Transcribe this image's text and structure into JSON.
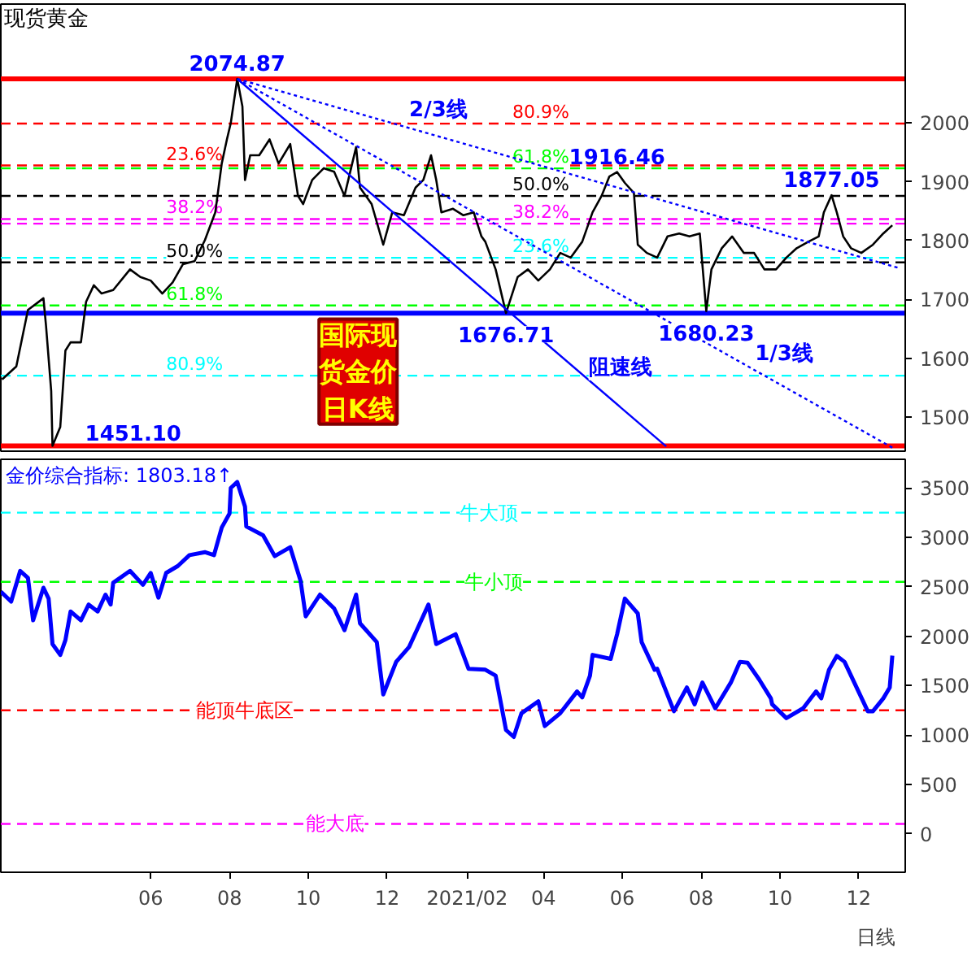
{
  "chart_data": [
    {
      "type": "line",
      "title": "现货黄金",
      "xlim": [
        "2020-02-06",
        "2022-01-06"
      ],
      "ylim": [
        1442,
        2202
      ],
      "yticks": [
        1500,
        1600,
        1700,
        1800,
        1900,
        2000
      ],
      "tick_labels": "y",
      "series": [
        {
          "color": "#000000",
          "x": [
            "2020-02-07",
            "2020-02-18",
            "2020-02-27",
            "2020-03-10",
            "2020-03-12",
            "2020-03-16",
            "2020-03-17",
            "2020-03-23",
            "2020-03-27",
            "2020-03-31",
            "2020-04-08",
            "2020-04-12",
            "2020-04-18",
            "2020-04-24",
            "2020-05-03",
            "2020-05-16",
            "2020-05-24",
            "2020-06-01",
            "2020-06-10",
            "2020-06-18",
            "2020-06-26",
            "2020-07-05",
            "2020-07-13",
            "2020-07-21",
            "2020-07-26",
            "2020-07-30",
            "2020-08-02",
            "2020-08-07",
            "2020-08-11",
            "2020-08-13",
            "2020-08-17",
            "2020-08-24",
            "2020-09-01",
            "2020-09-08",
            "2020-09-17",
            "2020-09-23",
            "2020-09-27",
            "2020-10-04",
            "2020-10-13",
            "2020-10-21",
            "2020-10-29",
            "2020-11-07",
            "2020-11-10",
            "2020-11-19",
            "2020-11-28",
            "2020-12-05",
            "2020-12-14",
            "2020-12-23",
            "2020-12-29",
            "2021-01-04",
            "2021-01-08",
            "2021-01-12",
            "2021-01-21",
            "2021-01-29",
            "2021-02-06",
            "2021-02-12",
            "2021-02-15",
            "2021-02-23",
            "2021-03-03",
            "2021-03-12",
            "2021-03-20",
            "2021-03-28",
            "2021-04-06",
            "2021-04-14",
            "2021-04-22",
            "2021-05-01",
            "2021-05-09",
            "2021-05-16",
            "2021-05-22",
            "2021-05-28",
            "2021-06-03",
            "2021-06-10",
            "2021-06-13",
            "2021-06-20",
            "2021-06-28",
            "2021-07-06",
            "2021-07-15",
            "2021-07-23",
            "2021-07-31",
            "2021-08-05",
            "2021-08-09",
            "2021-08-17",
            "2021-08-25",
            "2021-09-03",
            "2021-09-11",
            "2021-09-19",
            "2021-09-28",
            "2021-10-06",
            "2021-10-14",
            "2021-10-23",
            "2021-10-31",
            "2021-11-04",
            "2021-11-10",
            "2021-11-14",
            "2021-11-19",
            "2021-11-25",
            "2021-12-03",
            "2021-12-12",
            "2021-12-20",
            "2021-12-27"
          ],
          "values": [
            1564,
            1586,
            1682,
            1702,
            1655,
            1544,
            1451.1,
            1483,
            1613,
            1627,
            1627,
            1696,
            1724,
            1710,
            1716,
            1751,
            1738,
            1732,
            1710,
            1729,
            1760,
            1765,
            1801,
            1848,
            1931,
            1972,
            2000,
            2074.87,
            2028,
            1903,
            1945,
            1945,
            1972,
            1931,
            1964,
            1876,
            1862,
            1903,
            1923,
            1917,
            1876,
            1959,
            1890,
            1862,
            1793,
            1848,
            1843,
            1890,
            1903,
            1945,
            1903,
            1848,
            1854,
            1843,
            1848,
            1807,
            1798,
            1751,
            1676.71,
            1738,
            1751,
            1732,
            1751,
            1779,
            1771,
            1798,
            1848,
            1876,
            1909,
            1916.46,
            1898,
            1881,
            1793,
            1779,
            1771,
            1807,
            1812,
            1807,
            1812,
            1680.23,
            1751,
            1787,
            1807,
            1779,
            1779,
            1751,
            1751,
            1771,
            1787,
            1798,
            1807,
            1848,
            1877.05,
            1848,
            1807,
            1787,
            1779,
            1793,
            1812,
            1826
          ]
        },
        {
          "name": "2/3线",
          "color": "#0000ff",
          "line_style": "dotted",
          "x": [
            "2020-08-07",
            "2021-12-31"
          ],
          "values": [
            2074.87,
            1754
          ]
        },
        {
          "name": "1/3线",
          "color": "#0000ff",
          "line_style": "dotted",
          "x": [
            "2020-08-07",
            "2021-12-27"
          ],
          "values": [
            2074.87,
            1448
          ]
        },
        {
          "name": "阻速线",
          "color": "#0000ff",
          "line_style": "solid",
          "x": [
            "2020-08-07",
            "2021-07-05"
          ],
          "values": [
            2074.87,
            1450
          ]
        }
      ],
      "ref_lines": [
        {
          "axis": "y",
          "value": 1927.7,
          "color": "#ff0000",
          "line_style": "dashed"
        },
        {
          "axis": "y",
          "value": 1836.6,
          "color": "#ff00ff",
          "line_style": "dashed"
        },
        {
          "axis": "y",
          "value": 1763.0,
          "color": "#000000",
          "line_style": "dashed"
        },
        {
          "axis": "y",
          "value": 1689.6,
          "color": "#00ff00",
          "line_style": "dashed"
        },
        {
          "axis": "y",
          "value": 1570.3,
          "color": "#00ffff",
          "line_style": "dashed"
        },
        {
          "axis": "y",
          "value": 1998.8,
          "color": "#ff0000",
          "line_style": "dashed"
        },
        {
          "axis": "y",
          "value": 1922.8,
          "color": "#00ff00",
          "line_style": "dashed"
        },
        {
          "axis": "y",
          "value": 1875.8,
          "color": "#000000",
          "line_style": "dashed"
        },
        {
          "axis": "y",
          "value": 1828.8,
          "color": "#ff00ff",
          "line_style": "dashed"
        },
        {
          "axis": "y",
          "value": 1770.7,
          "color": "#00ffff",
          "line_style": "dashed"
        },
        {
          "axis": "y",
          "value": 2074.87,
          "color": "#ff0000",
          "line_style": "solid"
        },
        {
          "axis": "y",
          "value": 1676.71,
          "color": "#0000ff",
          "line_style": "solid"
        },
        {
          "axis": "y",
          "value": 1451.1,
          "color": "#ff0000",
          "line_style": "solid"
        }
      ],
      "annotations": [
        {
          "text": "2074.87",
          "x": "2020-08-07",
          "y": 2074.87
        },
        {
          "text": "1451.10",
          "x": "2020-03-17",
          "y": 1451.1
        },
        {
          "text": "1916.46",
          "x": "2021-05-28",
          "y": 1916.46
        },
        {
          "text": "1877.05",
          "x": "2021-11-10",
          "y": 1877.05
        },
        {
          "text": "1676.71",
          "x": "2021-03-03",
          "y": 1676.71
        },
        {
          "text": "1680.23",
          "x": "2021-08-05",
          "y": 1680.23
        },
        {
          "text": "23.6%",
          "x": "2020-06-13",
          "y": 1927.7
        },
        {
          "text": "38.2%",
          "x": "2020-06-13",
          "y": 1836.6
        },
        {
          "text": "50.0%",
          "x": "2020-06-13",
          "y": 1763.0
        },
        {
          "text": "61.8%",
          "x": "2020-06-13",
          "y": 1689.6
        },
        {
          "text": "80.9%",
          "x": "2020-06-13",
          "y": 1570.3
        },
        {
          "text": "80.9%",
          "x": "2021-03-08",
          "y": 1998.8
        },
        {
          "text": "61.8%",
          "x": "2021-03-08",
          "y": 1922.8
        },
        {
          "text": "50.0%",
          "x": "2021-03-08",
          "y": 1875.8
        },
        {
          "text": "38.2%",
          "x": "2021-03-08",
          "y": 1828.8
        },
        {
          "text": "23.6%",
          "x": "2021-03-08",
          "y": 1770.7
        },
        "国际现货金价日K线"
      ]
    },
    {
      "type": "line",
      "title": "金价综合指标: 1803.18↑",
      "xlim": [
        "2020-02-06",
        "2022-01-06"
      ],
      "ylim": [
        -390,
        3790
      ],
      "yticks": [
        0,
        500,
        1000,
        1500,
        2000,
        2500,
        3000,
        3500
      ],
      "xticks": [
        {
          "value": "2020-06-01",
          "label": "06"
        },
        {
          "value": "2020-08-01",
          "label": "08"
        },
        {
          "value": "2020-10-01",
          "label": "10"
        },
        {
          "value": "2020-12-01",
          "label": "12"
        },
        {
          "value": "2021-02-01",
          "label": "2021/02"
        },
        {
          "value": "2021-04-01",
          "label": "04"
        },
        {
          "value": "2021-06-01",
          "label": "06"
        },
        {
          "value": "2021-08-01",
          "label": "08"
        },
        {
          "value": "2021-10-01",
          "label": "10"
        },
        {
          "value": "2021-12-01",
          "label": "12"
        }
      ],
      "series": [
        {
          "color": "#0000ff",
          "x": [
            "2020-02-06",
            "2020-02-14",
            "2020-02-21",
            "2020-02-27",
            "2020-03-02",
            "2020-03-10",
            "2020-03-14",
            "2020-03-17",
            "2020-03-23",
            "2020-03-27",
            "2020-03-31",
            "2020-04-08",
            "2020-04-14",
            "2020-04-21",
            "2020-04-27",
            "2020-05-01",
            "2020-05-03",
            "2020-05-16",
            "2020-05-26",
            "2020-06-01",
            "2020-06-07",
            "2020-06-13",
            "2020-06-22",
            "2020-07-01",
            "2020-07-13",
            "2020-07-20",
            "2020-07-26",
            "2020-08-01",
            "2020-08-02",
            "2020-08-07",
            "2020-08-13",
            "2020-08-14",
            "2020-08-27",
            "2020-09-05",
            "2020-09-17",
            "2020-09-25",
            "2020-09-29",
            "2020-10-10",
            "2020-10-21",
            "2020-10-29",
            "2020-11-07",
            "2020-11-10",
            "2020-11-23",
            "2020-11-28",
            "2020-12-08",
            "2020-12-18",
            "2021-01-02",
            "2021-01-08",
            "2021-01-23",
            "2021-02-02",
            "2021-02-15",
            "2021-02-23",
            "2021-03-03",
            "2021-03-09",
            "2021-03-15",
            "2021-03-28",
            "2021-04-02",
            "2021-04-14",
            "2021-04-27",
            "2021-05-01",
            "2021-05-07",
            "2021-05-09",
            "2021-05-23",
            "2021-05-28",
            "2021-06-03",
            "2021-06-13",
            "2021-06-16",
            "2021-06-26",
            "2021-06-28",
            "2021-07-11",
            "2021-07-21",
            "2021-07-27",
            "2021-08-02",
            "2021-08-12",
            "2021-08-24",
            "2021-08-31",
            "2021-09-06",
            "2021-09-15",
            "2021-09-24",
            "2021-09-25",
            "2021-10-06",
            "2021-10-19",
            "2021-10-29",
            "2021-11-02",
            "2021-11-08",
            "2021-11-14",
            "2021-11-20",
            "2021-12-08",
            "2021-12-12",
            "2021-12-20",
            "2021-12-25",
            "2021-12-27"
          ],
          "values": [
            2450,
            2350,
            2660,
            2590,
            2160,
            2490,
            2380,
            1920,
            1810,
            1960,
            2250,
            2160,
            2320,
            2250,
            2420,
            2320,
            2540,
            2660,
            2520,
            2640,
            2390,
            2640,
            2710,
            2820,
            2850,
            2820,
            3100,
            3240,
            3500,
            3560,
            3310,
            3110,
            3020,
            2810,
            2900,
            2560,
            2200,
            2420,
            2280,
            2060,
            2420,
            2130,
            1940,
            1410,
            1740,
            1890,
            2320,
            1920,
            2020,
            1670,
            1660,
            1600,
            1050,
            980,
            1220,
            1340,
            1090,
            1220,
            1440,
            1380,
            1600,
            1810,
            1770,
            2020,
            2380,
            2230,
            1940,
            1660,
            1670,
            1240,
            1480,
            1310,
            1530,
            1270,
            1530,
            1740,
            1730,
            1560,
            1370,
            1310,
            1170,
            1270,
            1440,
            1370,
            1660,
            1800,
            1740,
            1240,
            1240,
            1370,
            1480,
            1803.18
          ]
        }
      ],
      "ref_lines": [
        {
          "axis": "y",
          "value": 3250,
          "label": "牛大顶",
          "color": "#00ffff",
          "line_style": "dashed"
        },
        {
          "axis": "y",
          "value": 2550,
          "label": "牛小顶",
          "color": "#00ff00",
          "line_style": "dashed"
        },
        {
          "axis": "y",
          "value": 1250,
          "label": "能顶牛底区",
          "color": "#ff0000",
          "line_style": "dashed"
        },
        {
          "axis": "y",
          "value": 100,
          "label": "能大底",
          "color": "#ff00ff",
          "line_style": "dashed"
        }
      ],
      "annotations": [
        "日线"
      ]
    }
  ]
}
